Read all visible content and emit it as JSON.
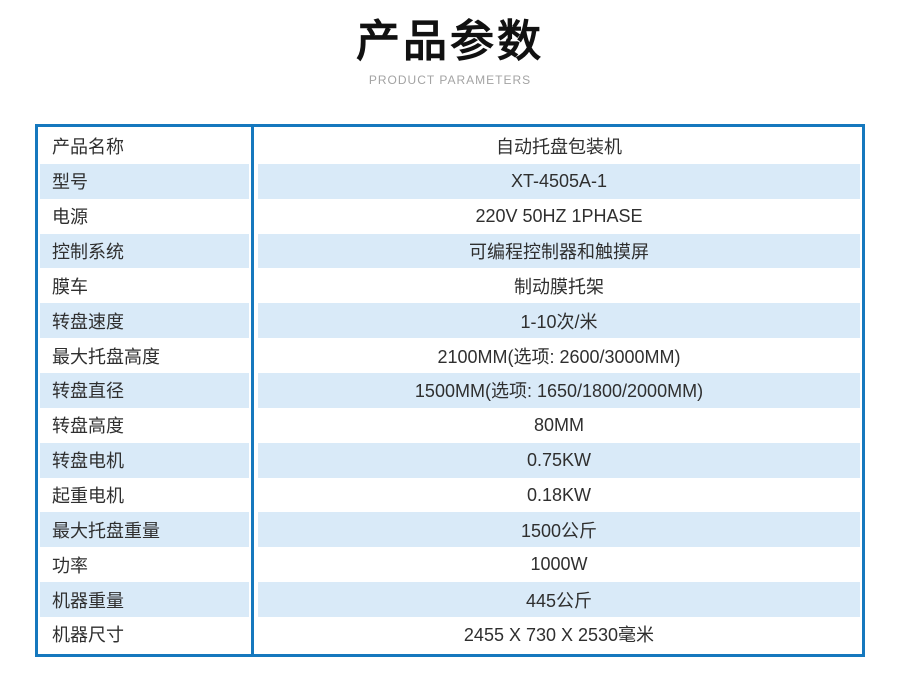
{
  "header": {
    "title": "产品参数",
    "subtitle": "PRODUCT PARAMETERS"
  },
  "colors": {
    "border_blue": "#1578be",
    "row_stripe_blue": "#d9eaf8",
    "row_white": "#ffffff",
    "title_text": "#111111",
    "subtitle_text": "#a3a3a3",
    "body_text": "#2f2f2f"
  },
  "table": {
    "rows": [
      {
        "label": "产品名称",
        "value": "自动托盘包装机"
      },
      {
        "label": "型号",
        "value": "XT-4505A-1"
      },
      {
        "label": "电源",
        "value": "220V 50HZ 1PHASE"
      },
      {
        "label": "控制系统",
        "value": "可编程控制器和触摸屏"
      },
      {
        "label": "膜车",
        "value": "制动膜托架"
      },
      {
        "label": "转盘速度",
        "value": "1-10次/米"
      },
      {
        "label": "最大托盘高度",
        "value": "2100MM(选项: 2600/3000MM)"
      },
      {
        "label": "转盘直径",
        "value": "1500MM(选项: 1650/1800/2000MM)"
      },
      {
        "label": "转盘高度",
        "value": "80MM"
      },
      {
        "label": "转盘电机",
        "value": "0.75KW"
      },
      {
        "label": "起重电机",
        "value": "0.18KW"
      },
      {
        "label": "最大托盘重量",
        "value": "1500公斤"
      },
      {
        "label": "功率",
        "value": "1000W"
      },
      {
        "label": "机器重量",
        "value": "445公斤"
      },
      {
        "label": "机器尺寸",
        "value": "2455 X 730 X 2530毫米"
      }
    ]
  }
}
